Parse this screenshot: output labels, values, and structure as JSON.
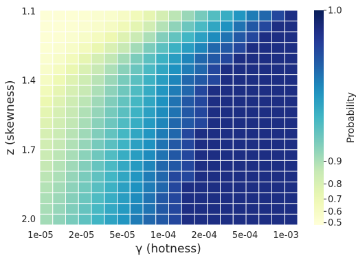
{
  "chart_data": {
    "type": "heatmap",
    "xlabel": "γ (hotness)",
    "ylabel": "z (skewness)",
    "colorbar_label": "Probability",
    "x_tick_labels": [
      "1e-05",
      "2e-05",
      "5e-05",
      "1e-04",
      "2e-04",
      "5e-04",
      "1e-03"
    ],
    "y_tick_labels": [
      "1.1",
      "1.4",
      "1.7",
      "2.0"
    ],
    "colorbar": {
      "range": [
        0.48,
        1.0
      ],
      "scale": "log-odds",
      "ticks": [
        0.5,
        0.6,
        0.7,
        0.8,
        0.9,
        1.0
      ],
      "tick_labels": [
        "0.5",
        "0.6",
        "0.7",
        "0.8",
        "0.9",
        "1.0"
      ],
      "colormap": "YlGnBu"
    },
    "grid": "white cell borders",
    "layout_note_rows": 20,
    "layout_note_cols": 20,
    "values": [
      [
        0.5,
        0.505,
        0.51,
        0.52,
        0.54,
        0.56,
        0.6,
        0.66,
        0.74,
        0.82,
        0.88,
        0.92,
        0.95,
        0.97,
        0.982,
        0.99,
        0.994,
        0.996,
        0.998,
        0.999
      ],
      [
        0.505,
        0.51,
        0.52,
        0.54,
        0.57,
        0.61,
        0.67,
        0.75,
        0.83,
        0.89,
        0.93,
        0.956,
        0.974,
        0.985,
        0.991,
        0.995,
        0.997,
        0.998,
        0.999,
        0.999
      ],
      [
        0.51,
        0.52,
        0.54,
        0.58,
        0.63,
        0.7,
        0.78,
        0.85,
        0.9,
        0.94,
        0.962,
        0.977,
        0.987,
        0.992,
        0.995,
        0.997,
        0.998,
        0.999,
        0.999,
        0.999
      ],
      [
        0.52,
        0.54,
        0.58,
        0.64,
        0.72,
        0.8,
        0.86,
        0.91,
        0.945,
        0.966,
        0.98,
        0.988,
        0.993,
        0.996,
        0.997,
        0.998,
        0.999,
        0.999,
        0.999,
        0.999
      ],
      [
        0.54,
        0.58,
        0.65,
        0.74,
        0.82,
        0.87,
        0.91,
        0.945,
        0.966,
        0.98,
        0.988,
        0.993,
        0.996,
        0.997,
        0.998,
        0.999,
        0.999,
        0.999,
        0.999,
        0.999
      ],
      [
        0.57,
        0.63,
        0.72,
        0.8,
        0.86,
        0.9,
        0.935,
        0.958,
        0.974,
        0.985,
        0.991,
        0.994,
        0.996,
        0.998,
        0.999,
        0.999,
        0.999,
        0.999,
        0.999,
        0.999
      ],
      [
        0.61,
        0.69,
        0.78,
        0.84,
        0.885,
        0.92,
        0.948,
        0.967,
        0.98,
        0.988,
        0.993,
        0.996,
        0.997,
        0.998,
        0.999,
        0.999,
        0.999,
        0.999,
        0.999,
        0.999
      ],
      [
        0.66,
        0.74,
        0.81,
        0.86,
        0.9,
        0.932,
        0.955,
        0.972,
        0.983,
        0.99,
        0.994,
        0.996,
        0.998,
        0.999,
        0.999,
        0.999,
        0.999,
        0.999,
        0.999,
        0.999
      ],
      [
        0.71,
        0.78,
        0.84,
        0.88,
        0.915,
        0.942,
        0.962,
        0.976,
        0.985,
        0.991,
        0.995,
        0.997,
        0.998,
        0.999,
        0.999,
        0.999,
        0.999,
        0.999,
        0.999,
        0.999
      ],
      [
        0.75,
        0.81,
        0.86,
        0.895,
        0.925,
        0.95,
        0.967,
        0.979,
        0.987,
        0.992,
        0.995,
        0.997,
        0.998,
        0.999,
        0.999,
        0.999,
        0.999,
        0.999,
        0.999,
        0.999
      ],
      [
        0.78,
        0.83,
        0.87,
        0.905,
        0.935,
        0.956,
        0.972,
        0.982,
        0.989,
        0.993,
        0.996,
        0.997,
        0.998,
        0.999,
        0.999,
        0.999,
        0.999,
        0.999,
        0.999,
        0.999
      ],
      [
        0.81,
        0.85,
        0.885,
        0.915,
        0.942,
        0.962,
        0.976,
        0.985,
        0.99,
        0.994,
        0.996,
        0.998,
        0.999,
        0.999,
        0.999,
        0.999,
        0.999,
        0.999,
        0.999,
        0.999
      ],
      [
        0.83,
        0.865,
        0.895,
        0.925,
        0.95,
        0.967,
        0.979,
        0.987,
        0.991,
        0.995,
        0.997,
        0.998,
        0.999,
        0.999,
        0.999,
        0.999,
        0.999,
        0.999,
        0.999,
        0.999
      ],
      [
        0.85,
        0.88,
        0.905,
        0.933,
        0.955,
        0.971,
        0.982,
        0.988,
        0.992,
        0.995,
        0.997,
        0.998,
        0.999,
        0.999,
        0.999,
        0.999,
        0.999,
        0.999,
        0.999,
        0.999
      ],
      [
        0.865,
        0.89,
        0.915,
        0.94,
        0.96,
        0.974,
        0.984,
        0.989,
        0.993,
        0.996,
        0.997,
        0.998,
        0.999,
        0.999,
        0.999,
        0.999,
        0.999,
        0.999,
        0.999,
        0.999
      ],
      [
        0.88,
        0.9,
        0.925,
        0.947,
        0.964,
        0.977,
        0.985,
        0.99,
        0.994,
        0.996,
        0.998,
        0.998,
        0.999,
        0.999,
        0.999,
        0.999,
        0.999,
        0.999,
        0.999,
        0.999
      ],
      [
        0.89,
        0.91,
        0.932,
        0.952,
        0.968,
        0.98,
        0.987,
        0.991,
        0.994,
        0.996,
        0.998,
        0.999,
        0.999,
        0.999,
        0.999,
        0.999,
        0.999,
        0.999,
        0.999,
        0.999
      ],
      [
        0.9,
        0.918,
        0.938,
        0.957,
        0.972,
        0.982,
        0.988,
        0.992,
        0.995,
        0.997,
        0.998,
        0.999,
        0.999,
        0.999,
        0.999,
        0.999,
        0.999,
        0.999,
        0.999,
        0.999
      ],
      [
        0.905,
        0.924,
        0.943,
        0.961,
        0.975,
        0.984,
        0.989,
        0.993,
        0.995,
        0.997,
        0.998,
        0.999,
        0.999,
        0.999,
        0.999,
        0.999,
        0.999,
        0.999,
        0.999,
        0.999
      ],
      [
        0.91,
        0.93,
        0.948,
        0.965,
        0.978,
        0.986,
        0.99,
        0.994,
        0.996,
        0.997,
        0.998,
        0.999,
        0.999,
        0.999,
        0.999,
        0.999,
        0.999,
        0.999,
        0.999,
        0.999
      ]
    ]
  }
}
